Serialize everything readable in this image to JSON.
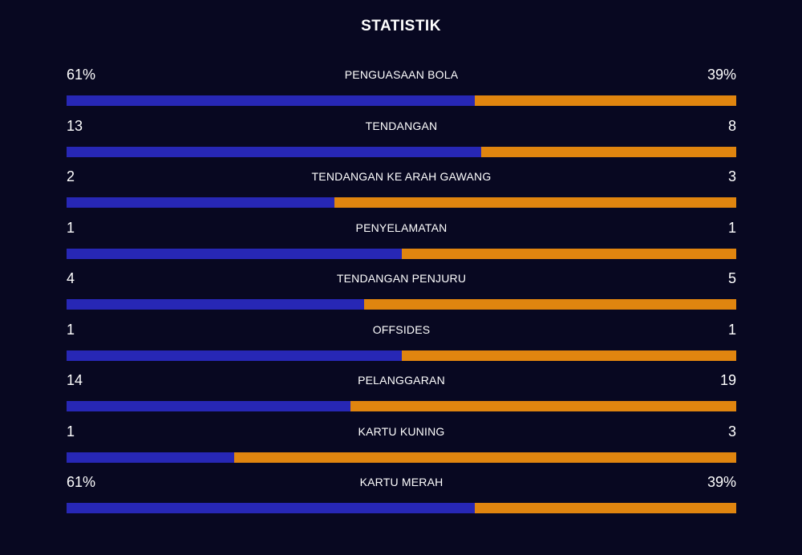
{
  "title": "STATISTIK",
  "colors": {
    "background": "#080821",
    "home_bar": "#2727b5",
    "away_bar": "#e0850f",
    "text": "#ffffff"
  },
  "stats": [
    {
      "label": "PENGUASAAN BOLA",
      "home": "61%",
      "away": "39%",
      "home_share": 0.61
    },
    {
      "label": "TENDANGAN",
      "home": "13",
      "away": "8",
      "home_share": 0.619
    },
    {
      "label": "TENDANGAN KE ARAH GAWANG",
      "home": "2",
      "away": "3",
      "home_share": 0.4
    },
    {
      "label": "PENYELAMATAN",
      "home": "1",
      "away": "1",
      "home_share": 0.5
    },
    {
      "label": "TENDANGAN PENJURU",
      "home": "4",
      "away": "5",
      "home_share": 0.444
    },
    {
      "label": "OFFSIDES",
      "home": "1",
      "away": "1",
      "home_share": 0.5
    },
    {
      "label": "PELANGGARAN",
      "home": "14",
      "away": "19",
      "home_share": 0.424
    },
    {
      "label": "KARTU KUNING",
      "home": "1",
      "away": "3",
      "home_share": 0.25
    },
    {
      "label": "KARTU MERAH",
      "home": "61%",
      "away": "39%",
      "home_share": 0.61
    }
  ]
}
